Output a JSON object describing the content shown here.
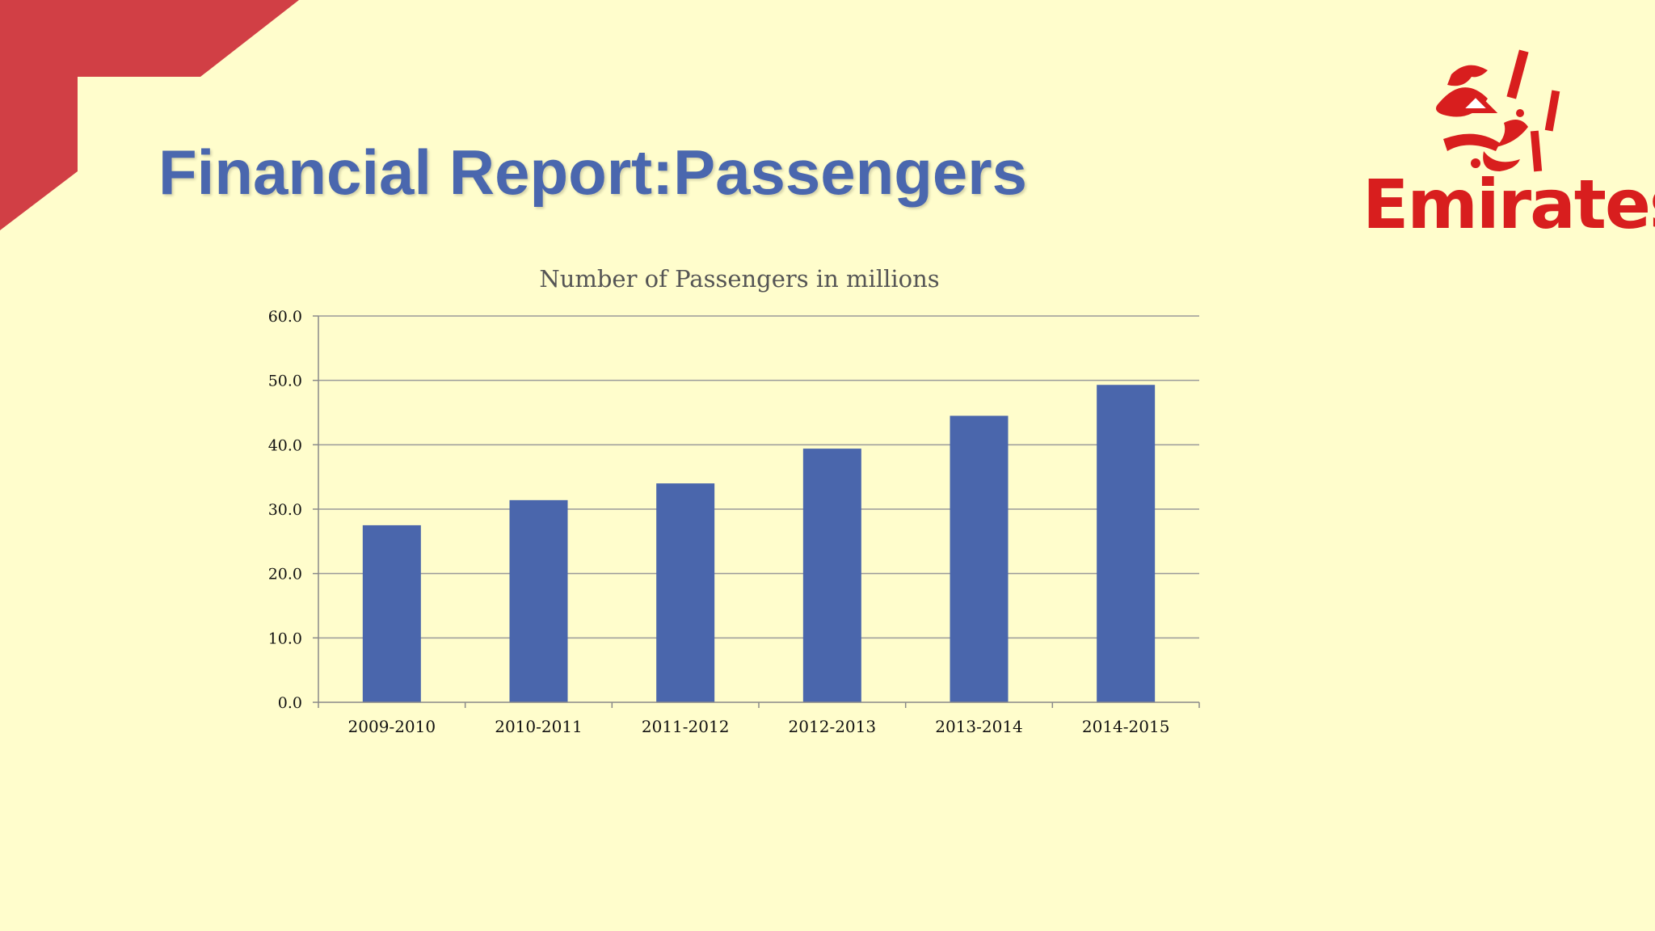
{
  "slide": {
    "title": "Financial Report:Passengers",
    "accent_color": "#D13F45",
    "background": "#FFFDCC"
  },
  "logo": {
    "wordmark": "Emirates",
    "arabic_script": "الإمارات",
    "color": "#D81E1E"
  },
  "chart_data": {
    "type": "bar",
    "title": "Number of Passengers in millions",
    "categories": [
      "2009-2010",
      "2010-2011",
      "2011-2012",
      "2012-2013",
      "2013-2014",
      "2014-2015"
    ],
    "values": [
      27.5,
      31.4,
      34.0,
      39.4,
      44.5,
      49.3
    ],
    "ylim": [
      0,
      60
    ],
    "yticks": [
      "0.0",
      "10.0",
      "20.0",
      "30.0",
      "40.0",
      "50.0",
      "60.0"
    ],
    "grid": true,
    "legend": "none",
    "bar_color": "#4A66AC"
  }
}
